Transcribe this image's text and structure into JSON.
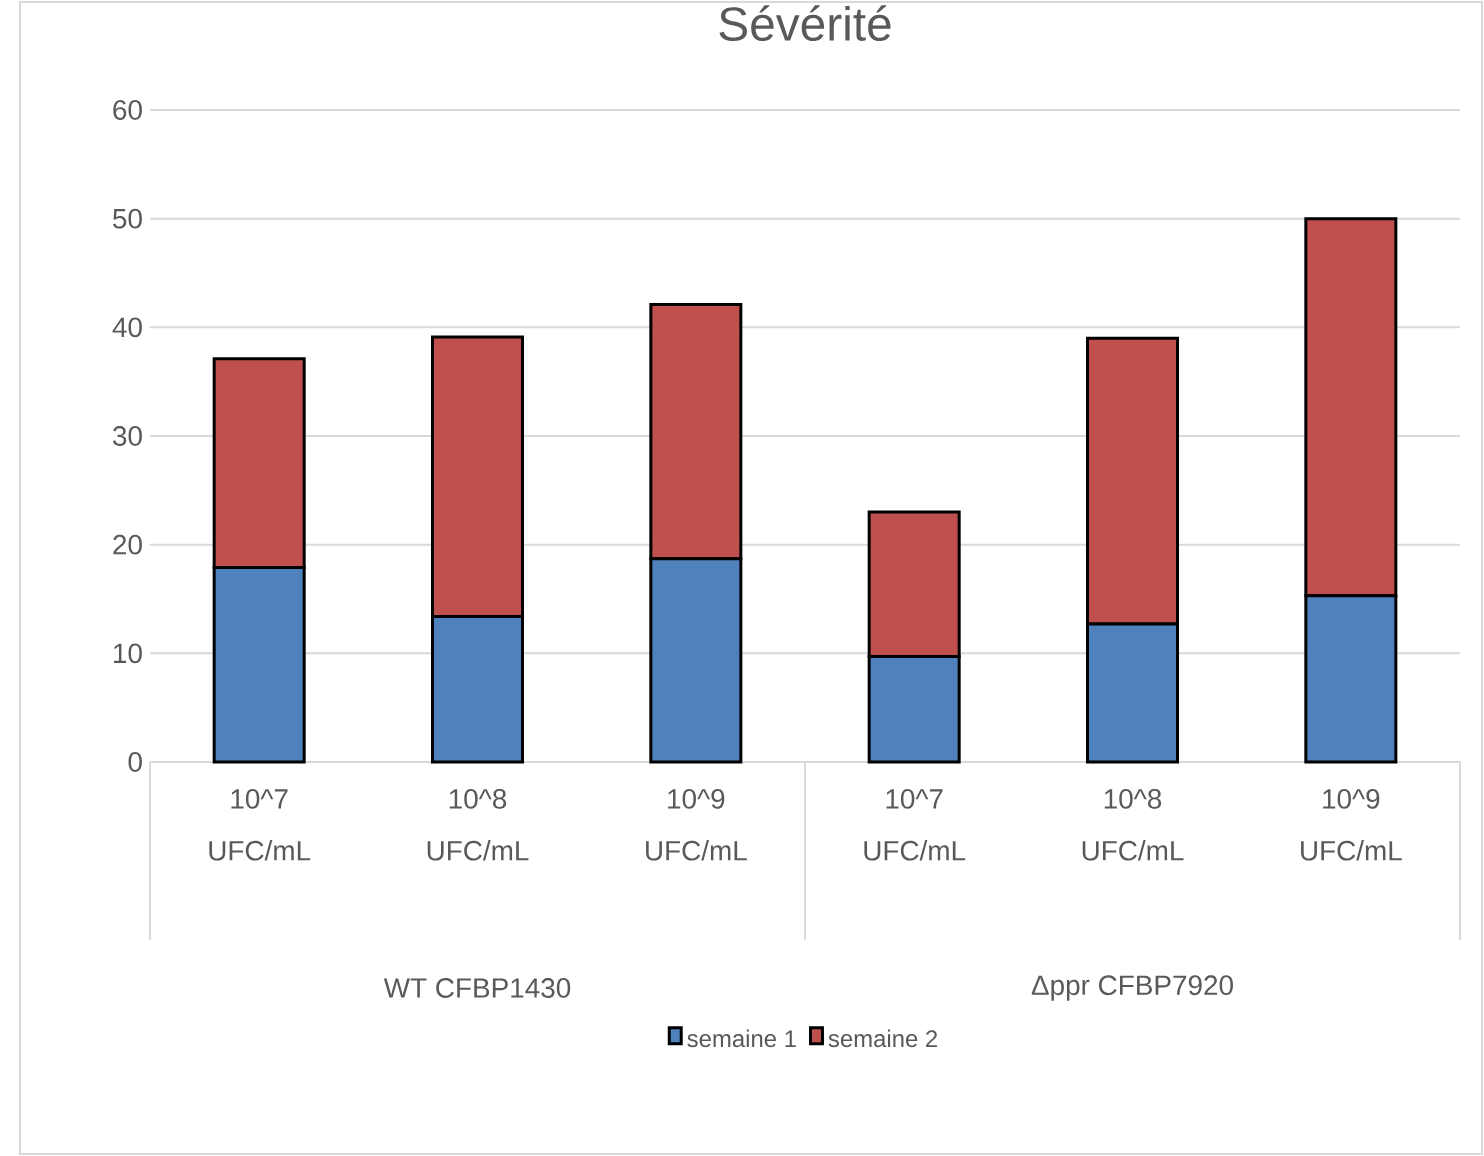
{
  "chart_data": {
    "type": "bar",
    "title": "Sévérité",
    "stacked": true,
    "categories": [
      "10^7 UFC/mL",
      "10^8 UFC/mL",
      "10^9 UFC/mL",
      "10^7 UFC/mL",
      "10^8 UFC/mL",
      "10^9 UFC/mL"
    ],
    "series": [
      {
        "name": "semaine 1",
        "color": "#4f81bd",
        "values": [
          17.9,
          13.4,
          18.7,
          9.7,
          12.7,
          15.3
        ]
      },
      {
        "name": "semaine 2",
        "color": "#c0504d",
        "values": [
          19.2,
          25.7,
          23.4,
          13.3,
          26.3,
          34.7
        ]
      }
    ],
    "ylim": [
      0,
      60
    ],
    "yticks": [
      0,
      10,
      20,
      30,
      40,
      50,
      60
    ],
    "grid": "y",
    "legend": "bottom",
    "annotations": [
      "WT CFBP1430",
      "Δppr CFBP7920"
    ]
  }
}
